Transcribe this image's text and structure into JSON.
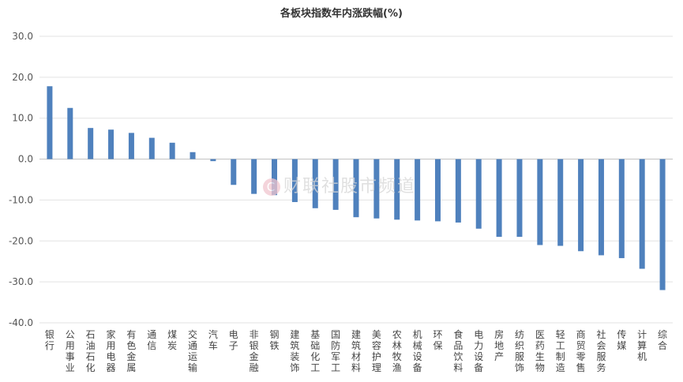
{
  "chart_data": {
    "type": "bar",
    "title": "各板块指数年内涨跌幅(%)",
    "ylim": [
      -40,
      30
    ],
    "yticks": [
      "30.0",
      "20.0",
      "10.0",
      "0.0",
      "-10.0",
      "-20.0",
      "-30.0",
      "-40.0"
    ],
    "grid": true,
    "bar_color": "#4f81bd",
    "categories": [
      "银行",
      "公用事业",
      "石油石化",
      "家用电器",
      "有色金属",
      "通信",
      "煤炭",
      "交通运输",
      "汽车",
      "电子",
      "非银金融",
      "钢铁",
      "建筑装饰",
      "基础化工",
      "国防军工",
      "建筑材料",
      "美容护理",
      "农林牧渔",
      "机械设备",
      "环保",
      "食品饮料",
      "电力设备",
      "房地产",
      "纺织服饰",
      "医药生物",
      "轻工制造",
      "商贸零售",
      "社会服务",
      "传媒",
      "计算机",
      "综合"
    ],
    "values": [
      17.8,
      12.5,
      7.6,
      7.2,
      6.4,
      5.2,
      4.0,
      1.7,
      -0.5,
      -6.3,
      -8.5,
      -8.8,
      -10.5,
      -12.0,
      -12.4,
      -14.2,
      -14.5,
      -14.8,
      -15.0,
      -15.2,
      -15.5,
      -17.0,
      -19.0,
      -19.0,
      -21.0,
      -21.2,
      -22.5,
      -23.5,
      -24.2,
      -26.8,
      -32.0
    ]
  },
  "watermark": {
    "text": "财联社股市频道",
    "logo": "C"
  }
}
